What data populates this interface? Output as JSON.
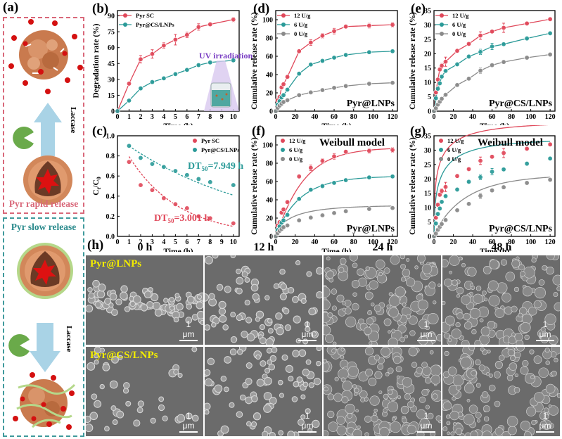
{
  "panel_labels": {
    "a": "(a)",
    "b": "(b)",
    "c": "(c)",
    "d": "(d)",
    "e": "(e)",
    "f": "(f)",
    "g": "(g)",
    "h": "(h)"
  },
  "schematic": {
    "rapid_title": "Pyr rapid release",
    "slow_title": "Pyr slow release",
    "enzyme_label_top": "Laccase",
    "enzyme_label_bottom": "Laccase",
    "colors": {
      "rapid_border": "#d9687a",
      "slow_border": "#3f9a9c",
      "shell": "#d2875a",
      "core": "#6b3a25",
      "drug": "#dd1111",
      "chitosan": "#b5d88a",
      "arrow": "#a9d3e6",
      "enzyme": "#6aaa4a"
    }
  },
  "uv_label": "UV irradiation",
  "sem": {
    "time_labels": [
      "0 h",
      "12 h",
      "24 h",
      "48 h"
    ],
    "row_labels": [
      "Pyr@LNPs",
      "Pyr@CS/LNPs"
    ],
    "scale_bar": "1 μm"
  },
  "chart_data": [
    {
      "id": "b",
      "type": "line",
      "xlabel": "Time (h)",
      "ylabel": "Degradation rate (%)",
      "xlim": [
        0,
        10.5
      ],
      "ylim": [
        0,
        95
      ],
      "xticks": [
        0,
        1,
        2,
        3,
        4,
        5,
        6,
        7,
        8,
        9,
        10
      ],
      "yticks": [
        0,
        15,
        30,
        45,
        60,
        75,
        90
      ],
      "legend": "top-left",
      "series": [
        {
          "name": "Pyr SC",
          "color": "#e0485a",
          "x": [
            0,
            1,
            2,
            3,
            4,
            5,
            6,
            7,
            8,
            10
          ],
          "y": [
            0,
            26,
            49,
            54,
            62,
            67.5,
            72,
            79.5,
            82,
            86.5
          ],
          "err": [
            0,
            1.5,
            3.5,
            4,
            2.5,
            5,
            2.5,
            3,
            1.5,
            2
          ]
        },
        {
          "name": "Pyr@CS/LNPs",
          "color": "#2a9a98",
          "x": [
            0,
            1,
            2,
            3,
            4,
            5,
            6,
            7,
            8,
            10
          ],
          "y": [
            0,
            10,
            21.5,
            27.5,
            31,
            35,
            39,
            43.5,
            46,
            48
          ],
          "err": [
            0,
            0.5,
            1,
            1,
            1,
            1,
            1,
            1,
            1,
            1
          ]
        }
      ]
    },
    {
      "id": "c",
      "type": "scatter",
      "xlabel": "Time (h)",
      "ylabel": "Ct/C0",
      "xlim": [
        0,
        10.5
      ],
      "ylim": [
        0,
        1.0
      ],
      "xticks": [
        0,
        1,
        2,
        3,
        4,
        5,
        6,
        7,
        8,
        9,
        10
      ],
      "yticks": [
        0.0,
        0.2,
        0.4,
        0.6,
        0.8,
        1.0
      ],
      "legend": "top-right",
      "annotations": [
        {
          "text": "DT50=7.949 h",
          "series": "Pyr@CS/LNPs"
        },
        {
          "text": "DT50=3.001 h",
          "series": "Pyr SC"
        }
      ],
      "series": [
        {
          "name": "Pyr SC",
          "color": "#e0485a",
          "x": [
            1,
            2,
            3,
            4,
            5,
            6,
            7,
            8,
            10
          ],
          "y": [
            0.74,
            0.51,
            0.46,
            0.38,
            0.32,
            0.28,
            0.2,
            0.18,
            0.13
          ],
          "err": [
            0.02,
            0.04,
            0.04,
            0.03,
            0.05,
            0.02,
            0.03,
            0.02,
            0.02
          ],
          "fit_k": 0.231,
          "fit_c0": 1.0
        },
        {
          "name": "Pyr@CS/LNPs",
          "color": "#2a9a98",
          "x": [
            1,
            2,
            3,
            4,
            5,
            6,
            7,
            8,
            10
          ],
          "y": [
            0.9,
            0.78,
            0.72,
            0.69,
            0.65,
            0.61,
            0.57,
            0.54,
            0.51
          ],
          "err": [
            0.01,
            0.01,
            0.01,
            0.01,
            0.01,
            0.01,
            0.01,
            0.01,
            0.01
          ],
          "fit_k": 0.0872,
          "fit_c0": 0.98
        }
      ]
    },
    {
      "id": "d",
      "type": "line",
      "xlabel": "Time (h)",
      "ylabel": "Cumulative release rate (%)",
      "inset_label": "Pyr@LNPs",
      "xlim": [
        0,
        125
      ],
      "ylim": [
        0,
        110
      ],
      "xticks": [
        0,
        20,
        40,
        60,
        80,
        100,
        120
      ],
      "yticks": [
        0,
        20,
        40,
        60,
        80,
        100
      ],
      "legend": "top-left",
      "series": [
        {
          "name": "12 U/g",
          "color": "#e0485a",
          "x": [
            0,
            2,
            4,
            6,
            8,
            12,
            24,
            36,
            48,
            60,
            72,
            96,
            120
          ],
          "y": [
            0,
            12,
            15.5,
            26,
            29.5,
            37.5,
            65.5,
            75,
            82.5,
            87.5,
            92.5,
            93.5,
            94.5
          ],
          "err": [
            0,
            1,
            1,
            1.5,
            1,
            1,
            2,
            3,
            2.5,
            3,
            1.5,
            2.5,
            2.5
          ]
        },
        {
          "name": "6 U/g",
          "color": "#2a9a98",
          "x": [
            0,
            2,
            4,
            6,
            8,
            12,
            24,
            36,
            48,
            60,
            72,
            96,
            120
          ],
          "y": [
            0,
            7,
            11,
            15,
            17.5,
            23.5,
            41,
            51,
            55,
            58.5,
            61.5,
            64.5,
            65.5
          ],
          "err": [
            0,
            0.5,
            0.5,
            1,
            1,
            1,
            1,
            1,
            1,
            1,
            1,
            1,
            1
          ]
        },
        {
          "name": "0 U/g",
          "color": "#8a8a8a",
          "x": [
            0,
            2,
            4,
            6,
            8,
            12,
            24,
            36,
            48,
            60,
            72,
            96,
            120
          ],
          "y": [
            0,
            3.5,
            6,
            8,
            10,
            12,
            17.5,
            20.5,
            23,
            25.5,
            27.5,
            30,
            31
          ],
          "err": [
            0,
            0.5,
            0.5,
            0.5,
            0.5,
            0.5,
            0.5,
            0.5,
            0.5,
            0.5,
            0.5,
            0.5,
            0.5
          ]
        }
      ]
    },
    {
      "id": "e",
      "type": "line",
      "xlabel": "Time (h)",
      "ylabel": "Cumulative release rate (%)",
      "inset_label": "Pyr@CS/LNPs",
      "xlim": [
        0,
        125
      ],
      "ylim": [
        0,
        35
      ],
      "xticks": [
        0,
        20,
        40,
        60,
        80,
        100,
        120
      ],
      "yticks": [
        0,
        5,
        10,
        15,
        20,
        25,
        30,
        35
      ],
      "legend": "top-left",
      "series": [
        {
          "name": "12 U/g",
          "color": "#e0485a",
          "x": [
            0,
            2,
            4,
            6,
            8,
            12,
            24,
            36,
            48,
            60,
            72,
            96,
            120
          ],
          "y": [
            0,
            6.5,
            11,
            14.5,
            15.8,
            17.2,
            21,
            23.4,
            26.3,
            27.7,
            29,
            30.5,
            32
          ],
          "err": [
            0,
            0.3,
            0.6,
            0.6,
            0.8,
            1.6,
            0.5,
            0.3,
            1.3,
            0.3,
            1.6,
            0.3,
            0.3
          ]
        },
        {
          "name": "6 U/g",
          "color": "#2a9a98",
          "x": [
            0,
            2,
            4,
            6,
            8,
            12,
            24,
            36,
            48,
            60,
            72,
            96,
            120
          ],
          "y": [
            0,
            4.5,
            7.8,
            9.7,
            12,
            14,
            16.3,
            19,
            20.6,
            22.5,
            23.3,
            25.3,
            27.1
          ],
          "err": [
            0,
            0.3,
            0.3,
            0.3,
            0.3,
            0.3,
            0.6,
            0.3,
            0.9,
            1.1,
            0.3,
            0.6,
            0.3
          ]
        },
        {
          "name": "0 U/g",
          "color": "#8a8a8a",
          "x": [
            0,
            2,
            4,
            6,
            8,
            12,
            24,
            36,
            48,
            60,
            72,
            96,
            120
          ],
          "y": [
            0,
            1,
            2.3,
            3.3,
            4.3,
            5.7,
            9.1,
            11.3,
            14.1,
            16,
            17.1,
            18.6,
            19.7
          ],
          "err": [
            0,
            0.2,
            0.2,
            0.2,
            0.3,
            0.3,
            0.3,
            0.3,
            0.9,
            0.3,
            0.3,
            0.3,
            0.3
          ]
        }
      ]
    },
    {
      "id": "f",
      "type": "scatter",
      "fit": "Weibull model",
      "xlabel": "Time (h)",
      "ylabel": "Cumulative release rate (%)",
      "inset_label": "Pyr@LNPs",
      "xlim": [
        0,
        125
      ],
      "ylim": [
        0,
        110
      ],
      "xticks": [
        0,
        20,
        40,
        60,
        80,
        100,
        120
      ],
      "yticks": [
        0,
        20,
        40,
        60,
        80,
        100
      ],
      "legend": "top-left",
      "series": [
        {
          "name": "12 U/g",
          "color": "#e0485a",
          "x": [
            0,
            2,
            4,
            6,
            8,
            12,
            24,
            36,
            48,
            60,
            72,
            96,
            120
          ],
          "y": [
            0,
            12,
            15.5,
            26,
            29.5,
            37.5,
            65.5,
            75,
            82.5,
            87.5,
            92.5,
            93.5,
            94.5
          ],
          "err": [
            0,
            1,
            1,
            1.5,
            1,
            1,
            2,
            3,
            2.5,
            3,
            1.5,
            2.5,
            2.5
          ],
          "fit": {
            "a": 97,
            "k": 0.035,
            "b": 1.05
          }
        },
        {
          "name": "6 U/g",
          "color": "#2a9a98",
          "x": [
            0,
            2,
            4,
            6,
            8,
            12,
            24,
            36,
            48,
            60,
            72,
            96,
            120
          ],
          "y": [
            0,
            7,
            11,
            15,
            17.5,
            23.5,
            41,
            51,
            55,
            58.5,
            61.5,
            64.5,
            65.5
          ],
          "err": [
            0,
            0.5,
            0.5,
            1,
            1,
            1,
            1,
            1,
            1,
            1,
            1,
            1,
            1
          ],
          "fit": {
            "a": 66,
            "k": 0.04,
            "b": 0.95
          }
        },
        {
          "name": "0 U/g",
          "color": "#8a8a8a",
          "x": [
            0,
            2,
            4,
            6,
            8,
            12,
            24,
            36,
            48,
            60,
            72,
            96,
            120
          ],
          "y": [
            0,
            3.5,
            6,
            8,
            10,
            12,
            17.5,
            20.5,
            23,
            25.5,
            27.5,
            30,
            31
          ],
          "err": [
            0,
            0.5,
            0.5,
            0.5,
            0.5,
            0.5,
            0.5,
            0.5,
            0.5,
            0.5,
            0.5,
            0.5,
            0.5
          ],
          "fit": {
            "a": 34,
            "k": 0.055,
            "b": 0.7
          }
        }
      ]
    },
    {
      "id": "g",
      "type": "scatter",
      "fit": "Weibull model",
      "xlabel": "Time (h)",
      "ylabel": "Cumulative release rate (%)",
      "inset_label": "Pyr@CS/LNPs",
      "xlim": [
        0,
        125
      ],
      "ylim": [
        0,
        35
      ],
      "xticks": [
        0,
        20,
        40,
        60,
        80,
        100,
        120
      ],
      "yticks": [
        0,
        5,
        10,
        15,
        20,
        25,
        30,
        35
      ],
      "legend": "top-left",
      "series": [
        {
          "name": "12 U/g",
          "color": "#e0485a",
          "x": [
            0,
            2,
            4,
            6,
            8,
            12,
            24,
            36,
            48,
            60,
            72,
            96,
            120
          ],
          "y": [
            0,
            6.5,
            11,
            14.5,
            15.8,
            17.2,
            21,
            23.4,
            26.3,
            27.7,
            29,
            30.5,
            32
          ],
          "err": [
            0,
            0.3,
            0.6,
            0.6,
            0.8,
            1.6,
            0.5,
            0.3,
            1.3,
            0.3,
            1.6,
            0.3,
            0.3
          ],
          "fit": {
            "a": 40,
            "k": 0.17,
            "b": 0.42
          }
        },
        {
          "name": "6 U/g",
          "color": "#2a9a98",
          "x": [
            0,
            2,
            4,
            6,
            8,
            12,
            24,
            36,
            48,
            60,
            72,
            96,
            120
          ],
          "y": [
            0,
            4.5,
            7.8,
            9.7,
            12,
            14,
            16.3,
            19,
            20.6,
            22.5,
            23.3,
            25.3,
            27.1
          ],
          "err": [
            0,
            0.3,
            0.3,
            0.3,
            0.3,
            0.3,
            0.6,
            0.3,
            0.9,
            1.1,
            0.3,
            0.6,
            0.3
          ],
          "fit": {
            "a": 34,
            "k": 0.12,
            "b": 0.48
          }
        },
        {
          "name": "0 U/g",
          "color": "#8a8a8a",
          "x": [
            0,
            2,
            4,
            6,
            8,
            12,
            24,
            36,
            48,
            60,
            72,
            96,
            120
          ],
          "y": [
            0,
            1,
            2.3,
            3.3,
            4.3,
            5.7,
            9.1,
            11.3,
            14.1,
            16,
            17.1,
            18.6,
            19.7
          ],
          "err": [
            0,
            0.2,
            0.2,
            0.2,
            0.3,
            0.3,
            0.3,
            0.3,
            0.9,
            0.3,
            0.3,
            0.3,
            0.3
          ],
          "fit": {
            "a": 21.5,
            "k": 0.03,
            "b": 0.9
          }
        }
      ]
    }
  ]
}
